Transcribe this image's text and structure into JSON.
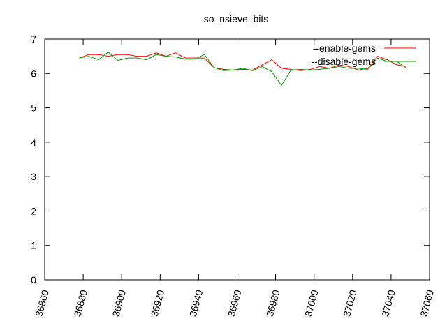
{
  "chart_data": {
    "type": "line",
    "title": "so_nsieve_bits",
    "xlabel": "",
    "ylabel": "",
    "xlim": [
      36860,
      37060
    ],
    "ylim": [
      0,
      7
    ],
    "x_ticks": [
      36860,
      36880,
      36900,
      36920,
      36940,
      36960,
      36980,
      37000,
      37020,
      37040,
      37060
    ],
    "y_ticks": [
      0,
      1,
      2,
      3,
      4,
      5,
      6,
      7
    ],
    "grid": false,
    "legend_position": "top-right",
    "series": [
      {
        "name": "--enable-gems",
        "color": "#ff0000",
        "x": [
          36878,
          36883,
          36888,
          36893,
          36898,
          36903,
          36908,
          36913,
          36918,
          36923,
          36928,
          36933,
          36938,
          36943,
          36948,
          36953,
          36958,
          36963,
          36968,
          36973,
          36978,
          36983,
          36988,
          36993,
          36998,
          37003,
          37008,
          37013,
          37018,
          37023,
          37028,
          37033,
          37038,
          37043,
          37048
        ],
        "y": [
          6.45,
          6.55,
          6.55,
          6.5,
          6.55,
          6.55,
          6.5,
          6.5,
          6.6,
          6.5,
          6.6,
          6.45,
          6.45,
          6.45,
          6.17,
          6.12,
          6.1,
          6.12,
          6.1,
          6.25,
          6.4,
          6.15,
          6.12,
          6.08,
          6.12,
          6.2,
          6.15,
          6.25,
          6.2,
          6.1,
          6.15,
          6.5,
          6.4,
          6.25,
          6.2
        ]
      },
      {
        "name": "--disable-gems",
        "color": "#00a000",
        "x": [
          36878,
          36883,
          36888,
          36893,
          36898,
          36903,
          36908,
          36913,
          36918,
          36923,
          36928,
          36933,
          36938,
          36943,
          36948,
          36953,
          36958,
          36963,
          36968,
          36973,
          36978,
          36983,
          36988,
          36993,
          36998,
          37003,
          37008,
          37013,
          37018,
          37023,
          37028,
          37033,
          37038,
          37043,
          37048
        ],
        "y": [
          6.45,
          6.5,
          6.4,
          6.62,
          6.38,
          6.45,
          6.45,
          6.4,
          6.55,
          6.5,
          6.48,
          6.42,
          6.42,
          6.55,
          6.17,
          6.08,
          6.1,
          6.15,
          6.08,
          6.2,
          6.05,
          5.65,
          6.1,
          6.12,
          6.1,
          6.12,
          6.15,
          6.2,
          6.15,
          6.15,
          6.12,
          6.45,
          6.35,
          6.35,
          6.15
        ]
      }
    ]
  }
}
